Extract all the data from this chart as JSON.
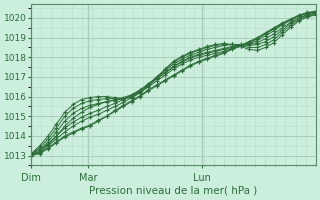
{
  "xlabel": "Pression niveau de la mer( hPa )",
  "bg_color": "#cceedd",
  "grid_color_major": "#aaccbb",
  "grid_color_minor": "#bbddcc",
  "line_color": "#2d6e3a",
  "ylim": [
    1012.5,
    1020.7
  ],
  "yticks": [
    1013,
    1014,
    1015,
    1016,
    1017,
    1018,
    1019,
    1020
  ],
  "day_labels": [
    "Dim",
    "Mar",
    "Lun"
  ],
  "day_positions": [
    0.0,
    0.286,
    0.714
  ],
  "series": [
    [
      1013.0,
      1013.15,
      1013.4,
      1013.7,
      1014.0,
      1014.2,
      1014.4,
      1014.55,
      1014.8,
      1015.0,
      1015.25,
      1015.5,
      1015.75,
      1016.0,
      1016.3,
      1016.55,
      1016.8,
      1017.05,
      1017.3,
      1017.55,
      1017.75,
      1017.9,
      1018.05,
      1018.2,
      1018.4,
      1018.55,
      1018.75,
      1018.95,
      1019.2,
      1019.45,
      1019.7,
      1019.9,
      1020.1,
      1020.25,
      1020.3
    ],
    [
      1013.0,
      1013.1,
      1013.35,
      1013.65,
      1013.95,
      1014.15,
      1014.35,
      1014.5,
      1014.75,
      1015.0,
      1015.3,
      1015.55,
      1015.8,
      1016.05,
      1016.35,
      1016.6,
      1016.85,
      1017.1,
      1017.35,
      1017.6,
      1017.8,
      1017.95,
      1018.1,
      1018.25,
      1018.45,
      1018.6,
      1018.8,
      1019.0,
      1019.25,
      1019.5,
      1019.75,
      1019.95,
      1020.15,
      1020.28,
      1020.35
    ],
    [
      1013.05,
      1013.2,
      1013.5,
      1013.85,
      1014.2,
      1014.5,
      1014.75,
      1014.95,
      1015.1,
      1015.3,
      1015.5,
      1015.7,
      1015.95,
      1016.2,
      1016.5,
      1016.8,
      1017.1,
      1017.4,
      1017.65,
      1017.85,
      1018.0,
      1018.1,
      1018.2,
      1018.3,
      1018.45,
      1018.6,
      1018.75,
      1018.95,
      1019.2,
      1019.45,
      1019.7,
      1019.9,
      1020.1,
      1020.25,
      1020.3
    ],
    [
      1013.1,
      1013.3,
      1013.6,
      1014.0,
      1014.4,
      1014.7,
      1014.95,
      1015.15,
      1015.3,
      1015.5,
      1015.65,
      1015.85,
      1016.05,
      1016.3,
      1016.6,
      1016.9,
      1017.2,
      1017.5,
      1017.75,
      1017.95,
      1018.1,
      1018.2,
      1018.3,
      1018.4,
      1018.5,
      1018.6,
      1018.7,
      1018.85,
      1019.1,
      1019.35,
      1019.65,
      1019.88,
      1020.1,
      1020.25,
      1020.3
    ],
    [
      1013.0,
      1013.2,
      1013.55,
      1014.0,
      1014.5,
      1014.9,
      1015.2,
      1015.45,
      1015.6,
      1015.75,
      1015.85,
      1015.95,
      1016.1,
      1016.35,
      1016.65,
      1016.95,
      1017.25,
      1017.55,
      1017.8,
      1018.0,
      1018.15,
      1018.25,
      1018.35,
      1018.45,
      1018.55,
      1018.6,
      1018.65,
      1018.75,
      1018.95,
      1019.2,
      1019.5,
      1019.78,
      1020.0,
      1020.18,
      1020.25
    ],
    [
      1013.05,
      1013.3,
      1013.7,
      1014.2,
      1014.75,
      1015.15,
      1015.4,
      1015.55,
      1015.65,
      1015.75,
      1015.8,
      1015.9,
      1016.05,
      1016.3,
      1016.65,
      1017.0,
      1017.35,
      1017.65,
      1017.9,
      1018.1,
      1018.25,
      1018.4,
      1018.5,
      1018.6,
      1018.65,
      1018.65,
      1018.6,
      1018.65,
      1018.8,
      1019.05,
      1019.4,
      1019.72,
      1019.98,
      1020.15,
      1020.22
    ],
    [
      1013.1,
      1013.4,
      1013.85,
      1014.4,
      1015.0,
      1015.4,
      1015.65,
      1015.8,
      1015.85,
      1015.9,
      1015.9,
      1015.9,
      1016.0,
      1016.25,
      1016.6,
      1017.0,
      1017.4,
      1017.75,
      1018.0,
      1018.2,
      1018.35,
      1018.5,
      1018.6,
      1018.65,
      1018.65,
      1018.6,
      1018.5,
      1018.5,
      1018.65,
      1018.9,
      1019.28,
      1019.62,
      1019.92,
      1020.1,
      1020.18
    ],
    [
      1013.1,
      1013.5,
      1014.0,
      1014.6,
      1015.2,
      1015.6,
      1015.85,
      1015.95,
      1016.0,
      1016.0,
      1015.95,
      1015.9,
      1015.95,
      1016.2,
      1016.55,
      1016.95,
      1017.4,
      1017.8,
      1018.05,
      1018.25,
      1018.4,
      1018.55,
      1018.65,
      1018.7,
      1018.65,
      1018.55,
      1018.4,
      1018.35,
      1018.5,
      1018.75,
      1019.15,
      1019.52,
      1019.85,
      1020.05,
      1020.15
    ]
  ],
  "n_points": 35
}
